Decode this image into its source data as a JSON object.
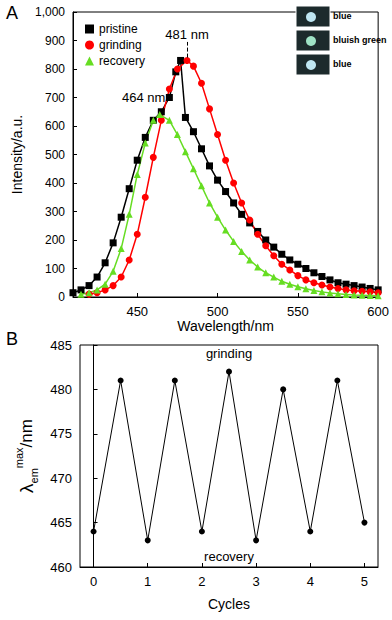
{
  "chart_data": [
    {
      "type": "line",
      "panel_label": "A",
      "xlabel": "Wavelength/nm",
      "ylabel": "Intensity/a.u.",
      "xlim": [
        410,
        600
      ],
      "xticks": [
        450,
        500,
        550,
        600
      ],
      "ylim": [
        0,
        1000
      ],
      "yticks": [
        0,
        100,
        200,
        300,
        400,
        500,
        600,
        700,
        800,
        900,
        1000
      ],
      "grid": false,
      "legend": "upper left",
      "series": [
        {
          "name": "pristine",
          "color": "#000000",
          "marker": "square",
          "x": [
            410,
            415,
            420,
            425,
            430,
            435,
            440,
            445,
            450,
            455,
            460,
            465,
            470,
            474,
            477,
            480,
            485,
            490,
            495,
            500,
            505,
            510,
            515,
            520,
            525,
            530,
            535,
            540,
            545,
            550,
            555,
            560,
            565,
            570,
            575,
            580,
            585,
            590,
            595,
            600
          ],
          "values": [
            15,
            25,
            40,
            70,
            120,
            190,
            280,
            380,
            480,
            560,
            620,
            650,
            700,
            790,
            830,
            630,
            580,
            520,
            460,
            410,
            370,
            330,
            290,
            260,
            230,
            200,
            175,
            150,
            130,
            115,
            100,
            85,
            72,
            60,
            50,
            45,
            40,
            35,
            30,
            25
          ]
        },
        {
          "name": "grinding",
          "color": "#ff0000",
          "marker": "circle",
          "x": [
            420,
            425,
            430,
            435,
            440,
            445,
            450,
            455,
            460,
            465,
            470,
            475,
            481,
            485,
            490,
            495,
            500,
            505,
            510,
            515,
            520,
            525,
            530,
            535,
            540,
            545,
            550,
            555,
            560,
            565,
            570,
            575,
            580,
            585,
            590,
            595,
            600
          ],
          "values": [
            10,
            15,
            25,
            40,
            70,
            130,
            220,
            350,
            490,
            620,
            730,
            800,
            830,
            810,
            750,
            660,
            570,
            480,
            400,
            330,
            270,
            220,
            180,
            145,
            115,
            95,
            75,
            60,
            50,
            42,
            35,
            30,
            25,
            22,
            20,
            18,
            15
          ]
        },
        {
          "name": "recovery",
          "color": "#66dd22",
          "marker": "triangle",
          "x": [
            415,
            420,
            425,
            430,
            435,
            440,
            445,
            450,
            455,
            460,
            464,
            470,
            475,
            480,
            485,
            490,
            495,
            500,
            505,
            510,
            515,
            520,
            525,
            530,
            535,
            540,
            545,
            550,
            555,
            560,
            565,
            570,
            575,
            580,
            585,
            590,
            595,
            600
          ],
          "values": [
            10,
            15,
            25,
            45,
            90,
            170,
            290,
            430,
            540,
            620,
            640,
            620,
            570,
            510,
            450,
            390,
            330,
            280,
            235,
            195,
            160,
            130,
            105,
            85,
            70,
            55,
            45,
            36,
            29,
            23,
            18,
            14,
            11,
            9,
            7,
            6,
            5,
            4
          ]
        }
      ],
      "annotations": [
        {
          "text": "481 nm",
          "x": 481,
          "y": 920,
          "line_y": [
            840,
            895
          ]
        },
        {
          "text": "464 nm",
          "x": 454,
          "y": 700
        }
      ],
      "insets": [
        "blue",
        "bluish green",
        "blue"
      ]
    },
    {
      "type": "line",
      "panel_label": "B",
      "xlabel": "Cycles",
      "ylabel": {
        "symbol": "λ",
        "sub": "em",
        "sup": "max",
        "unit": "/nm"
      },
      "xlim": [
        -0.25,
        5.25
      ],
      "xticks": [
        0,
        1,
        2,
        3,
        4,
        5
      ],
      "ylim": [
        460,
        485
      ],
      "yticks": [
        460,
        465,
        470,
        475,
        480,
        485
      ],
      "grid": false,
      "series": [
        {
          "color": "#000000",
          "marker": "circle",
          "x": [
            0,
            0.5,
            1,
            1.5,
            2,
            2.5,
            3,
            3.5,
            4,
            4.5,
            5
          ],
          "values": [
            464,
            481,
            463,
            481,
            464,
            482,
            463,
            480,
            464,
            481,
            465
          ]
        }
      ],
      "annotations": [
        {
          "text": "grinding",
          "x": 2.5,
          "y": 484
        },
        {
          "text": "recovery",
          "x": 2.5,
          "y": 461.2
        }
      ]
    }
  ]
}
